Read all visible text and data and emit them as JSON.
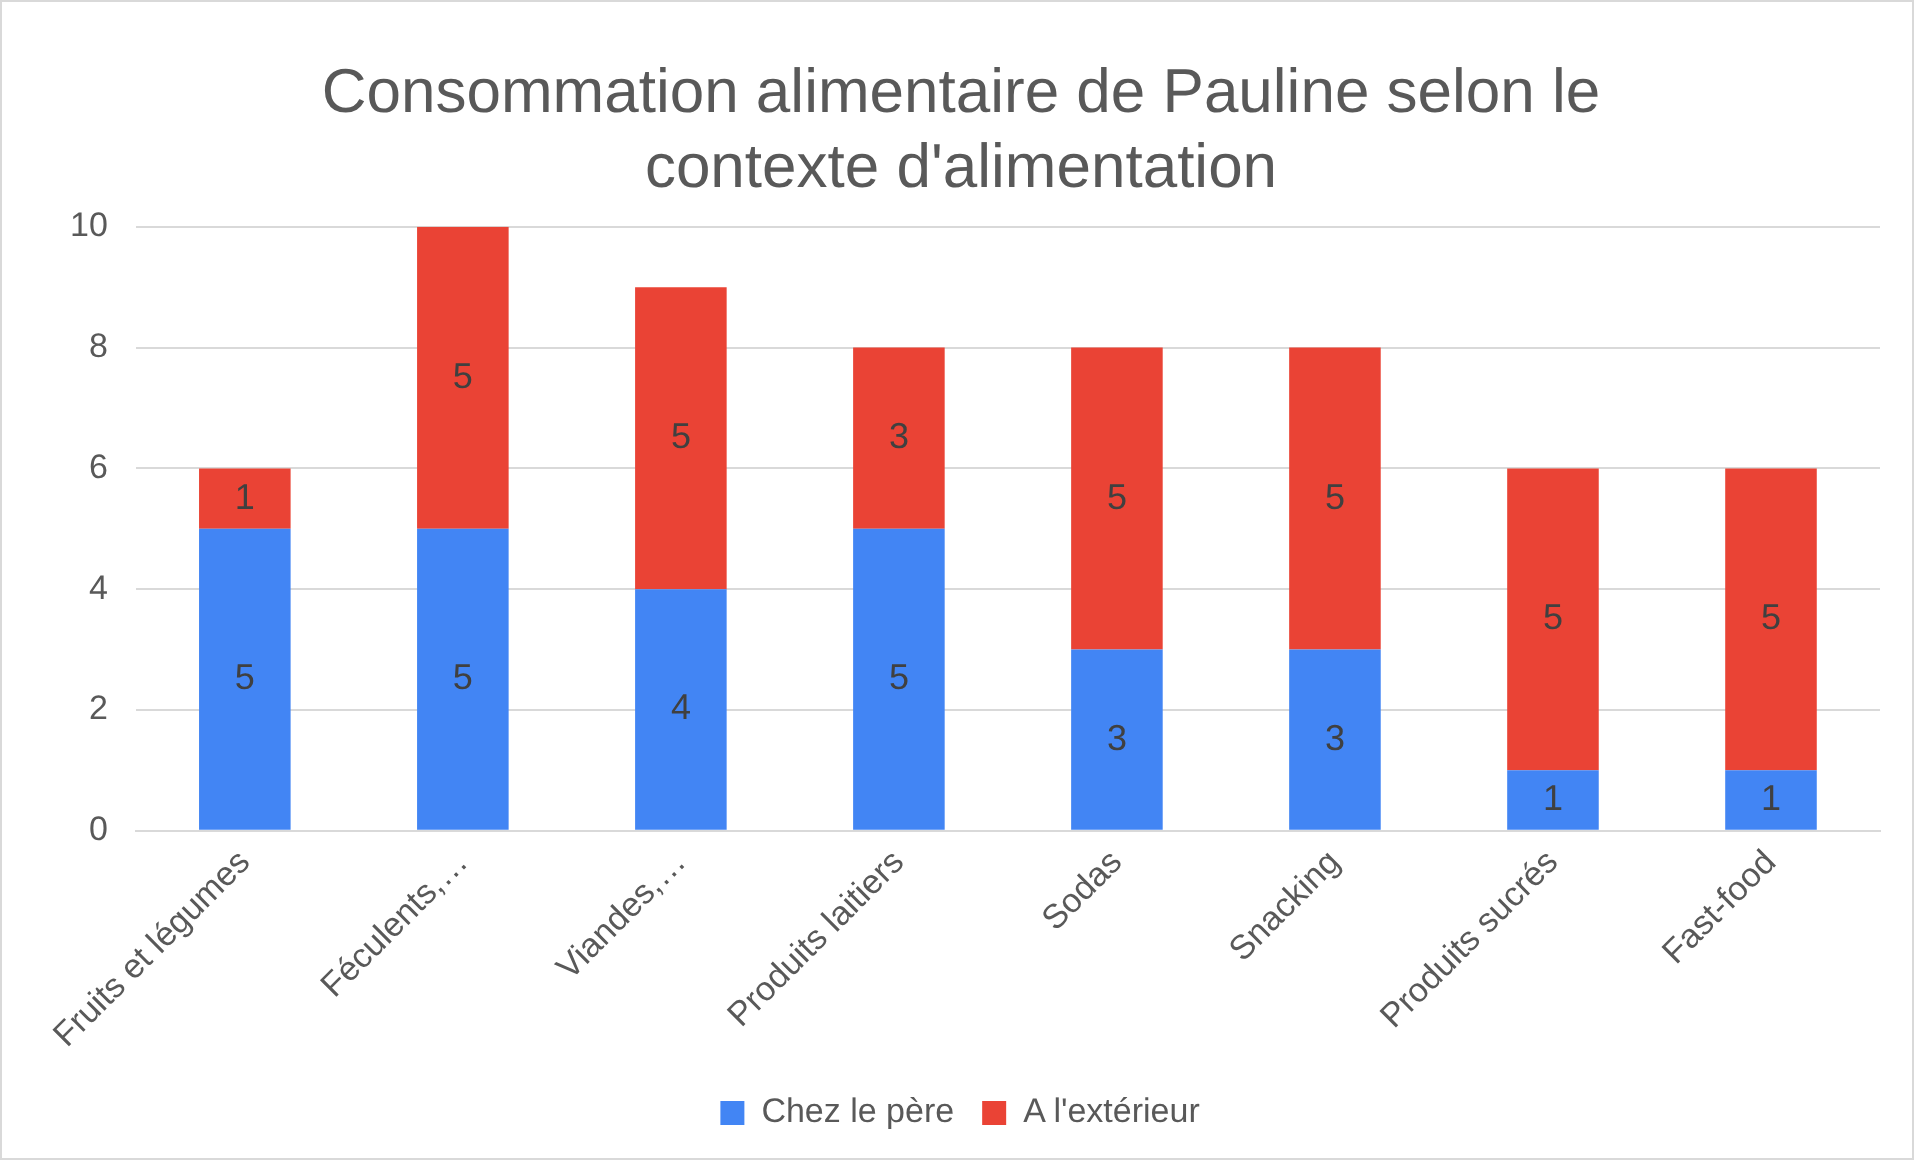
{
  "chart_data": {
    "type": "bar",
    "title": "Consommation alimentaire de Pauline selon le contexte d'alimentation",
    "categories": [
      "Fruits et légumes",
      "Féculents,…",
      "Viandes,…",
      "Produits laitiers",
      "Sodas",
      "Snacking",
      "Produits sucrés",
      "Fast-food"
    ],
    "series": [
      {
        "name": "Chez le père",
        "color": "#4285f4",
        "values": [
          5,
          5,
          4,
          5,
          3,
          3,
          1,
          1
        ]
      },
      {
        "name": "A l'extérieur",
        "color": "#ea4335",
        "values": [
          1,
          5,
          5,
          3,
          5,
          5,
          5,
          5
        ]
      }
    ],
    "stacked": true,
    "ylim": [
      0,
      10
    ],
    "yticks": [
      0,
      2,
      4,
      6,
      8,
      10
    ],
    "grid": "y",
    "legend": "bottom",
    "data_labels": true
  }
}
